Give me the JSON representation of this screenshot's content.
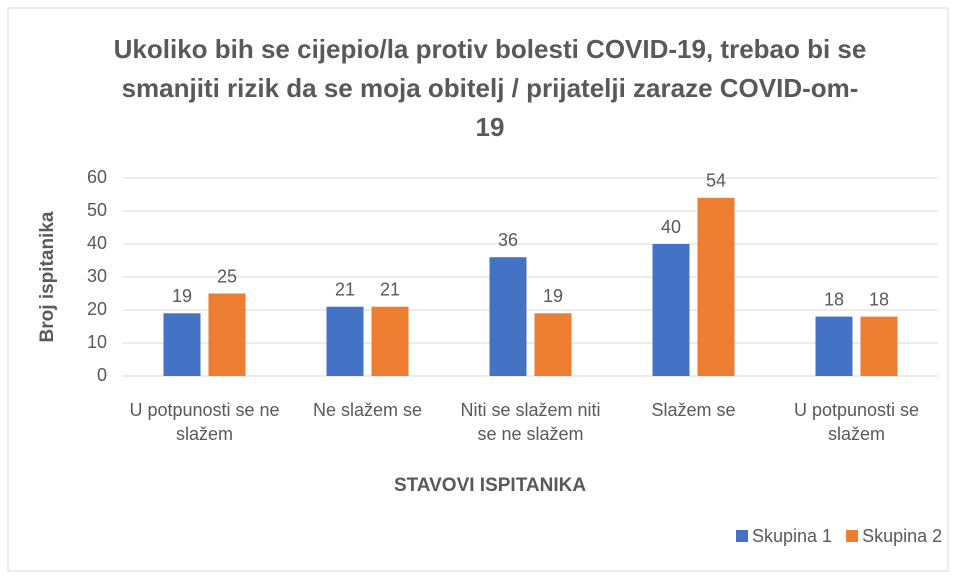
{
  "chart_data": {
    "type": "bar",
    "title": "Ukoliko bih se cijepio/la protiv bolesti COVID-19, trebao bi se smanjiti rizik da se moja obitelj / prijatelji zaraze COVID-om-19",
    "xlabel": "STAVOVI ISPITANIKA",
    "ylabel": "Broj ispitanika",
    "categories": [
      "U potpunosti se ne slažem",
      "Ne slažem se",
      "Niti se slažem niti se ne slažem",
      "Slažem se",
      "U potpunosti se slažem"
    ],
    "series": [
      {
        "name": "Skupina 1",
        "color": "#4472c4",
        "values": [
          19,
          21,
          36,
          40,
          18
        ]
      },
      {
        "name": "Skupina 2",
        "color": "#ed7d31",
        "values": [
          25,
          21,
          19,
          54,
          18
        ]
      }
    ],
    "ylim": [
      0,
      60
    ],
    "yticks": [
      0,
      10,
      20,
      30,
      40,
      50,
      60
    ],
    "grid": true,
    "legend": "bottom-right"
  }
}
